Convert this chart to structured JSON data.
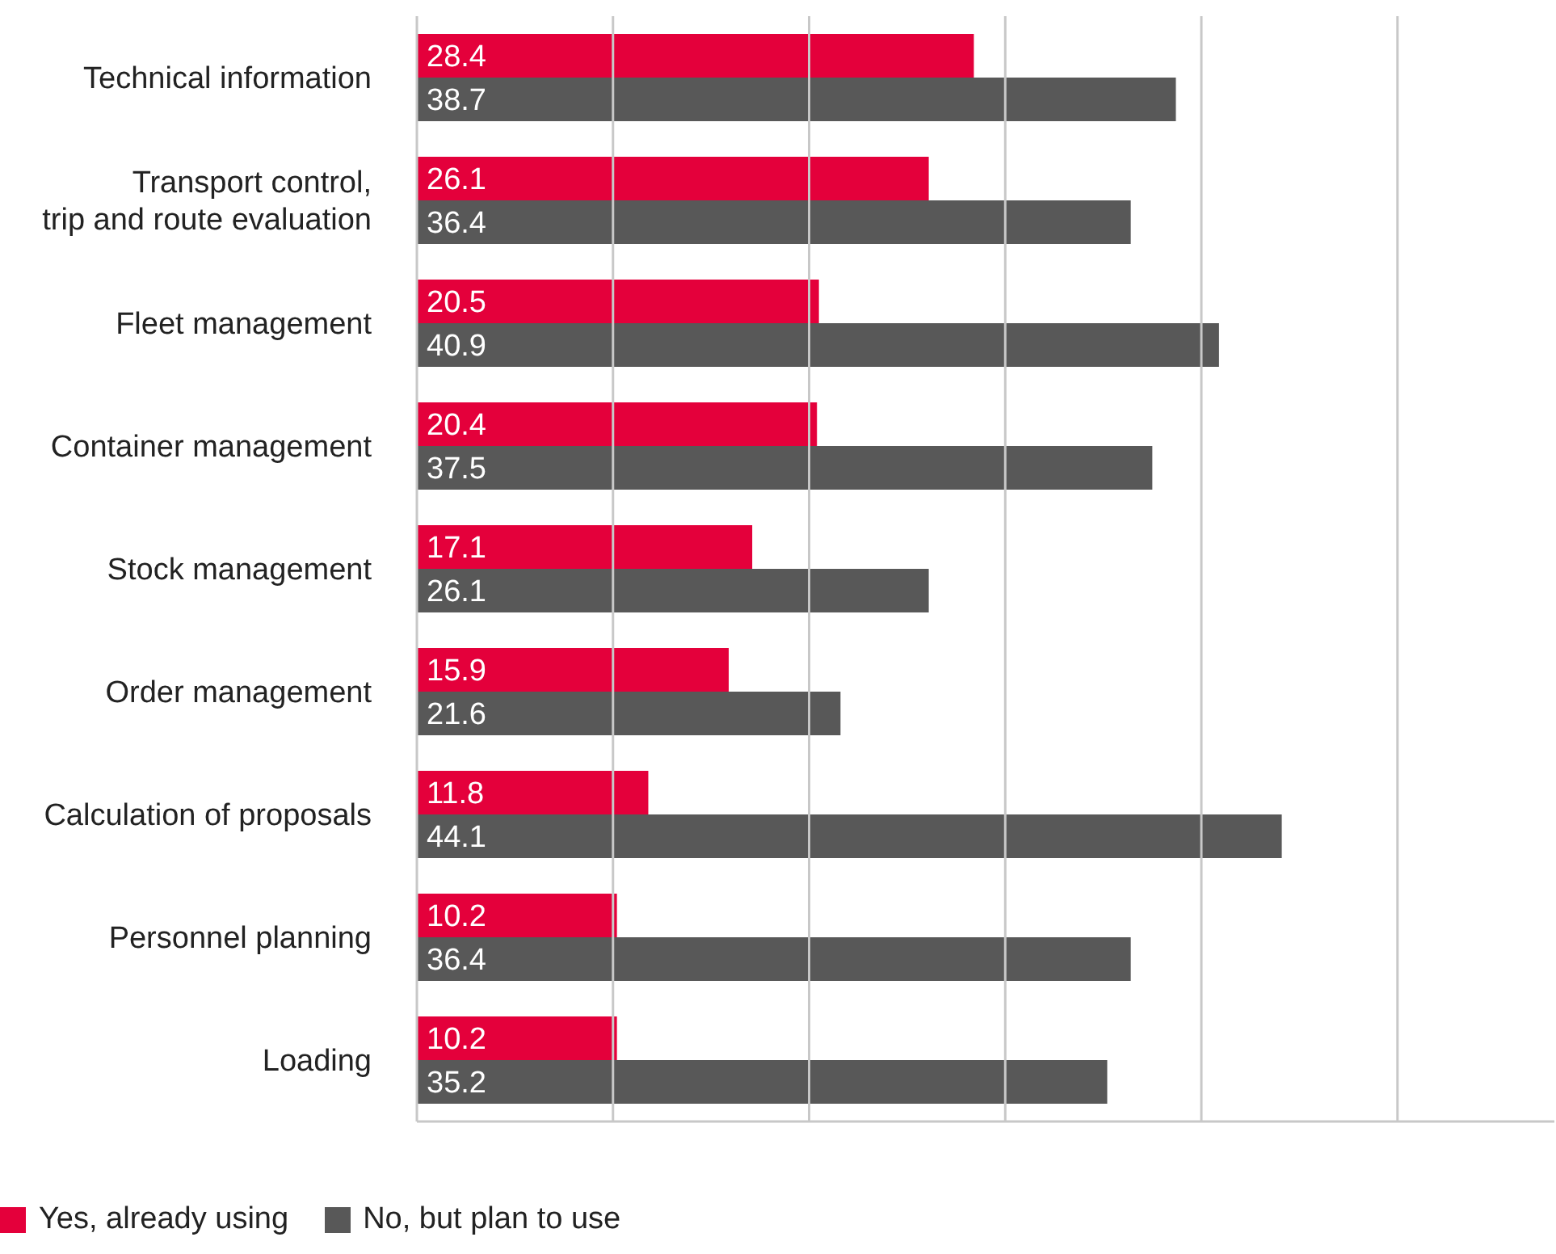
{
  "chart_data": {
    "type": "bar",
    "orientation": "horizontal",
    "categories": [
      "Technical information",
      "Transport control, trip and route evaluation",
      "Fleet management",
      "Container management",
      "Stock management",
      "Order management",
      "Calculation of proposals",
      "Personnel planning",
      "Loading"
    ],
    "series": [
      {
        "name": "Yes, already using",
        "color": "#e4003b",
        "values": [
          28.4,
          26.1,
          20.5,
          20.4,
          17.1,
          15.9,
          11.8,
          10.2,
          10.2
        ]
      },
      {
        "name": "No, but plan to use",
        "color": "#585858",
        "values": [
          38.7,
          36.4,
          40.9,
          37.5,
          26.1,
          21.6,
          44.1,
          36.4,
          35.2
        ]
      }
    ],
    "xlim": [
      0,
      58
    ],
    "xticks": [
      {
        "value": 0,
        "label": null
      },
      {
        "value": 10,
        "label": null
      },
      {
        "value": 20,
        "label": null
      },
      {
        "value": 30,
        "label": null
      },
      {
        "value": 40,
        "label": null
      },
      {
        "value": 50,
        "label": null
      }
    ],
    "tick_labels": "y",
    "grid": "x",
    "legend": "bottom left",
    "data_labels": true
  }
}
